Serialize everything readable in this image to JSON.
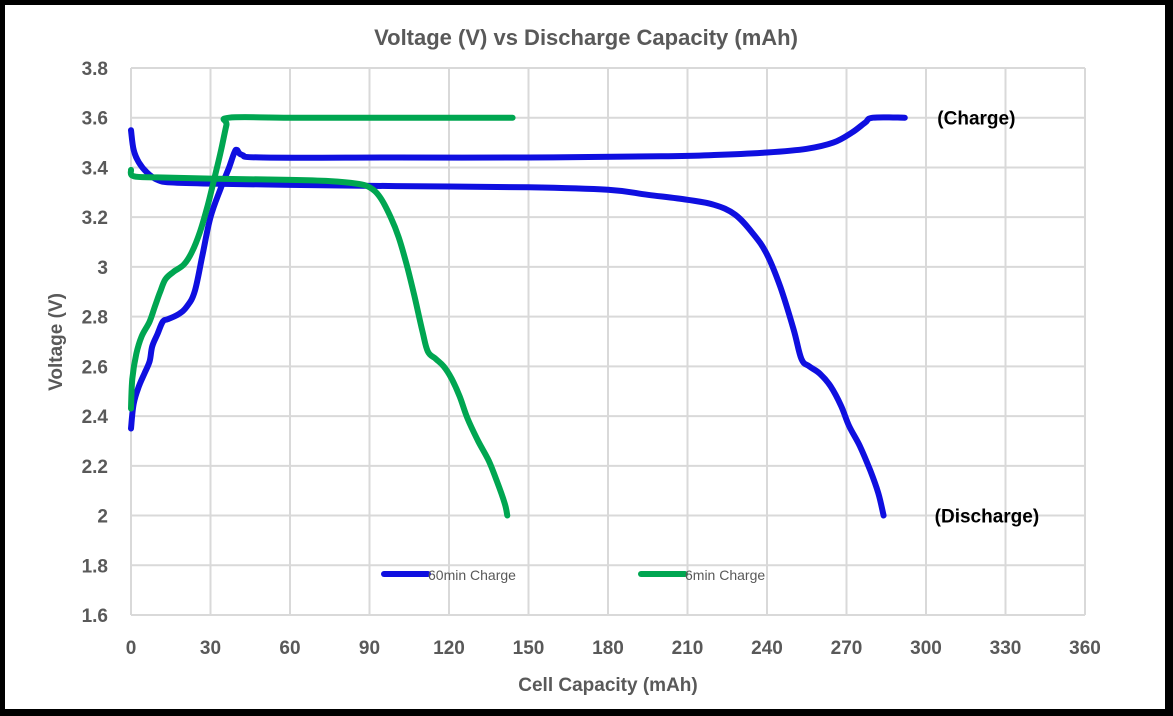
{
  "chart_data": {
    "type": "line",
    "title": "Voltage (V) vs Discharge Capacity (mAh)",
    "xlabel": "Cell Capacity (mAh)",
    "ylabel": "Voltage (V)",
    "xlim": [
      0,
      360
    ],
    "ylim": [
      1.6,
      3.8
    ],
    "xticks": [
      "0",
      "30",
      "60",
      "90",
      "120",
      "150",
      "180",
      "210",
      "240",
      "270",
      "300",
      "330",
      "360"
    ],
    "yticks": [
      "3.8",
      "3.6",
      "3.4",
      "3.2",
      "3",
      "2.8",
      "2.6",
      "2.4",
      "2.2",
      "2",
      "1.8",
      "1.6"
    ],
    "grid": true,
    "legend_position": "bottom-inside",
    "series": [
      {
        "name": "60min Charge",
        "color": "#0F0FE0",
        "charge": [
          [
            0,
            2.35
          ],
          [
            1,
            2.45
          ],
          [
            3,
            2.52
          ],
          [
            5,
            2.57
          ],
          [
            7,
            2.62
          ],
          [
            8,
            2.68
          ],
          [
            10,
            2.73
          ],
          [
            12,
            2.78
          ],
          [
            14,
            2.79
          ],
          [
            18,
            2.81
          ],
          [
            21,
            2.84
          ],
          [
            24,
            2.9
          ],
          [
            27,
            3.05
          ],
          [
            30,
            3.2
          ],
          [
            34,
            3.32
          ],
          [
            37,
            3.4
          ],
          [
            39,
            3.46
          ],
          [
            40,
            3.47
          ],
          [
            42,
            3.45
          ],
          [
            50,
            3.44
          ],
          [
            100,
            3.44
          ],
          [
            150,
            3.44
          ],
          [
            200,
            3.445
          ],
          [
            220,
            3.45
          ],
          [
            240,
            3.46
          ],
          [
            255,
            3.475
          ],
          [
            265,
            3.5
          ],
          [
            272,
            3.54
          ],
          [
            277,
            3.58
          ],
          [
            280,
            3.6
          ],
          [
            292,
            3.6
          ]
        ],
        "discharge": [
          [
            0,
            3.55
          ],
          [
            1,
            3.47
          ],
          [
            3,
            3.42
          ],
          [
            6,
            3.38
          ],
          [
            10,
            3.35
          ],
          [
            15,
            3.34
          ],
          [
            30,
            3.335
          ],
          [
            60,
            3.33
          ],
          [
            100,
            3.325
          ],
          [
            150,
            3.32
          ],
          [
            180,
            3.31
          ],
          [
            195,
            3.29
          ],
          [
            210,
            3.27
          ],
          [
            220,
            3.25
          ],
          [
            228,
            3.21
          ],
          [
            235,
            3.13
          ],
          [
            240,
            3.05
          ],
          [
            245,
            2.92
          ],
          [
            250,
            2.75
          ],
          [
            253,
            2.63
          ],
          [
            256,
            2.6
          ],
          [
            260,
            2.57
          ],
          [
            264,
            2.52
          ],
          [
            268,
            2.44
          ],
          [
            271,
            2.36
          ],
          [
            275,
            2.28
          ],
          [
            279,
            2.18
          ],
          [
            282,
            2.09
          ],
          [
            284,
            2.0
          ]
        ]
      },
      {
        "name": "6min Charge",
        "color": "#00A651",
        "charge": [
          [
            0,
            2.43
          ],
          [
            0.5,
            2.55
          ],
          [
            2,
            2.65
          ],
          [
            4,
            2.72
          ],
          [
            7,
            2.78
          ],
          [
            9,
            2.84
          ],
          [
            11,
            2.9
          ],
          [
            13,
            2.95
          ],
          [
            16,
            2.98
          ],
          [
            20,
            3.01
          ],
          [
            23,
            3.06
          ],
          [
            26,
            3.14
          ],
          [
            29,
            3.25
          ],
          [
            32,
            3.38
          ],
          [
            34,
            3.47
          ],
          [
            36,
            3.57
          ],
          [
            37,
            3.6
          ],
          [
            60,
            3.6
          ],
          [
            100,
            3.6
          ],
          [
            144,
            3.6
          ]
        ],
        "discharge": [
          [
            0,
            3.39
          ],
          [
            1,
            3.365
          ],
          [
            10,
            3.36
          ],
          [
            30,
            3.355
          ],
          [
            60,
            3.35
          ],
          [
            75,
            3.345
          ],
          [
            85,
            3.335
          ],
          [
            90,
            3.32
          ],
          [
            94,
            3.28
          ],
          [
            98,
            3.2
          ],
          [
            101,
            3.12
          ],
          [
            104,
            3.01
          ],
          [
            107,
            2.88
          ],
          [
            110,
            2.74
          ],
          [
            112,
            2.66
          ],
          [
            115,
            2.63
          ],
          [
            118,
            2.6
          ],
          [
            121,
            2.55
          ],
          [
            124,
            2.48
          ],
          [
            127,
            2.39
          ],
          [
            131,
            2.3
          ],
          [
            135,
            2.22
          ],
          [
            138,
            2.14
          ],
          [
            141,
            2.05
          ],
          [
            142,
            2.0
          ]
        ]
      }
    ],
    "annotations": [
      {
        "text": "(Charge)",
        "x": 302,
        "y": 3.6
      },
      {
        "text": "(Discharge)",
        "x": 301,
        "y": 2.0
      }
    ]
  }
}
